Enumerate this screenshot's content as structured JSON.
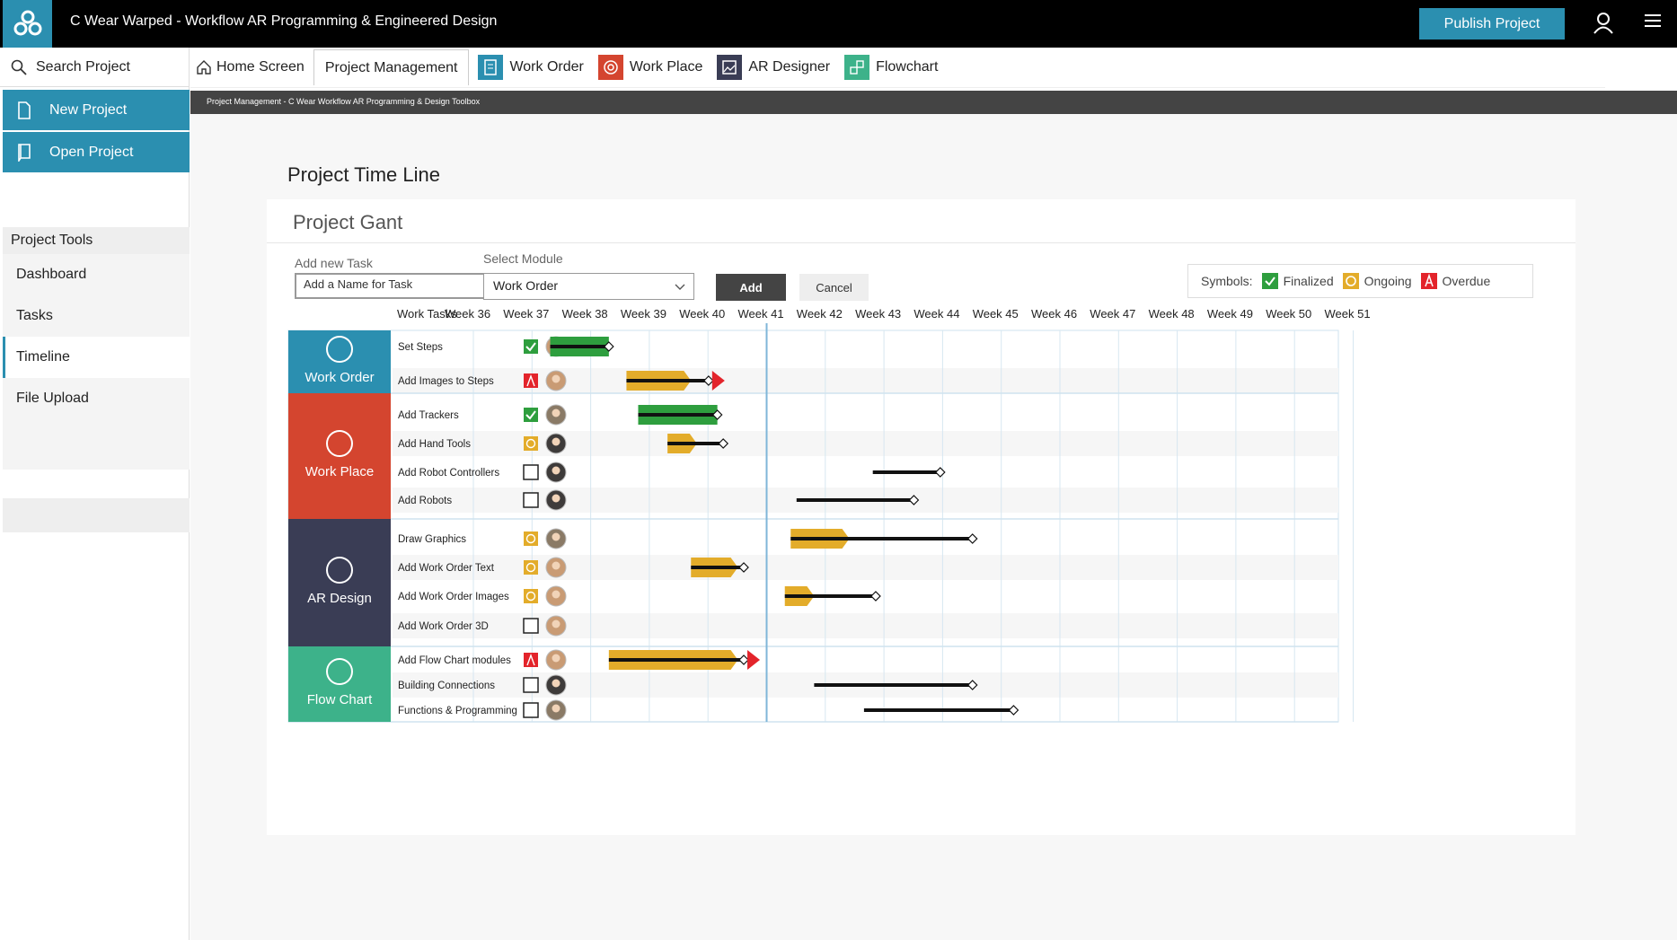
{
  "app": {
    "title": "C Wear Warped - Workflow AR Programming & Engineered Design",
    "publish_label": "Publish Project"
  },
  "sidebar": {
    "search_label": "Search Project",
    "new_project": "New Project",
    "open_project": "Open Project",
    "tools_header": "Project Tools",
    "items": [
      "Dashboard",
      "Tasks",
      "Timeline",
      "File Upload"
    ],
    "active_item": "Timeline"
  },
  "tabs": [
    {
      "label": "Home Screen",
      "icon": "home-icon"
    },
    {
      "label": "Project Management",
      "icon": ""
    },
    {
      "label": "Work Order",
      "icon": "work-order-icon",
      "color": "#2b8fb0"
    },
    {
      "label": "Work Place",
      "icon": "work-place-icon",
      "color": "#d4452f"
    },
    {
      "label": "AR Designer",
      "icon": "ar-designer-icon",
      "color": "#3a3d55"
    },
    {
      "label": "Flowchart",
      "icon": "flowchart-icon",
      "color": "#3db28a"
    }
  ],
  "breadcrumb": "Project Management - C Wear Workflow AR Programming & Design Toolbox",
  "page": {
    "title": "Project Time Line",
    "gantt_title": "Project Gant"
  },
  "form": {
    "task_label": "Add new Task",
    "task_value": "Add a Name for Task",
    "module_label": "Select Module",
    "module_value": "Work Order",
    "add_label": "Add",
    "cancel_label": "Cancel"
  },
  "legend": {
    "label": "Symbols:",
    "items": [
      {
        "label": "Finalized",
        "status": "done",
        "color": "#2e9e3e"
      },
      {
        "label": "Ongoing",
        "status": "ongoing",
        "color": "#e3ac2a"
      },
      {
        "label": "Overdue",
        "status": "overdue",
        "color": "#e3242b"
      }
    ]
  },
  "chart_data": {
    "type": "gantt",
    "header_label": "Work Tasks",
    "weeks": [
      "Week 36",
      "Week 37",
      "Week 38",
      "Week 39",
      "Week 40",
      "Week 41",
      "Week 42",
      "Week 43",
      "Week 44",
      "Week 45",
      "Week 46",
      "Week 47",
      "Week 48",
      "Week 49",
      "Week 50",
      "Week 51"
    ],
    "today_week": 41,
    "modules": [
      {
        "name": "Work Order",
        "color": "#2b8fb0",
        "icon": "work-order-icon"
      },
      {
        "name": "Work Place",
        "color": "#d4452f",
        "icon": "work-place-icon"
      },
      {
        "name": "AR Design",
        "color": "#3a3d55",
        "icon": "ar-design-icon"
      },
      {
        "name": "Flow Chart",
        "color": "#3db28a",
        "icon": "flow-chart-icon"
      }
    ],
    "tasks": [
      {
        "module": 0,
        "name": "Set Steps",
        "status": "done",
        "avatar": 0,
        "start": 37.8,
        "end": 38.8,
        "progress_end": 38.8
      },
      {
        "module": 0,
        "name": "Add Images to Steps",
        "status": "overdue",
        "avatar": 0,
        "start": 39.1,
        "end": 40.5,
        "progress_end": 40.2
      },
      {
        "module": 1,
        "name": "Add Trackers",
        "status": "done",
        "avatar": 1,
        "start": 39.3,
        "end": 40.65,
        "progress_end": 40.65
      },
      {
        "module": 1,
        "name": "Add Hand Tools",
        "status": "ongoing",
        "avatar": 2,
        "start": 39.8,
        "end": 40.75,
        "progress_end": 40.3
      },
      {
        "module": 1,
        "name": "Add Robot Controllers",
        "status": "none",
        "avatar": 2,
        "start": 43.3,
        "end": 44.45,
        "progress_end": 43.3
      },
      {
        "module": 1,
        "name": "Add Robots",
        "status": "none",
        "avatar": 2,
        "start": 42.0,
        "end": 44.0,
        "progress_end": 42.0
      },
      {
        "module": 2,
        "name": "Draw Graphics",
        "status": "ongoing",
        "avatar": 1,
        "start": 41.9,
        "end": 45.0,
        "progress_end": 42.9
      },
      {
        "module": 2,
        "name": "Add Work Order Text",
        "status": "ongoing",
        "avatar": 0,
        "start": 40.2,
        "end": 41.1,
        "progress_end": 41.0
      },
      {
        "module": 2,
        "name": "Add Work Order Images",
        "status": "ongoing",
        "avatar": 0,
        "start": 41.8,
        "end": 43.35,
        "progress_end": 42.3
      },
      {
        "module": 2,
        "name": "Add Work Order 3D",
        "status": "none",
        "avatar": 0,
        "start": null,
        "end": null,
        "progress_end": null
      },
      {
        "module": 3,
        "name": "Add Flow Chart modules",
        "status": "overdue",
        "avatar": 0,
        "start": 38.8,
        "end": 41.1,
        "progress_end": 41.0
      },
      {
        "module": 3,
        "name": "Building Connections",
        "status": "none",
        "avatar": 2,
        "start": 42.3,
        "end": 45.0,
        "progress_end": 42.3
      },
      {
        "module": 3,
        "name": "Functions & Programming",
        "status": "none",
        "avatar": 1,
        "start": 43.15,
        "end": 45.7,
        "progress_end": 43.15
      }
    ]
  }
}
